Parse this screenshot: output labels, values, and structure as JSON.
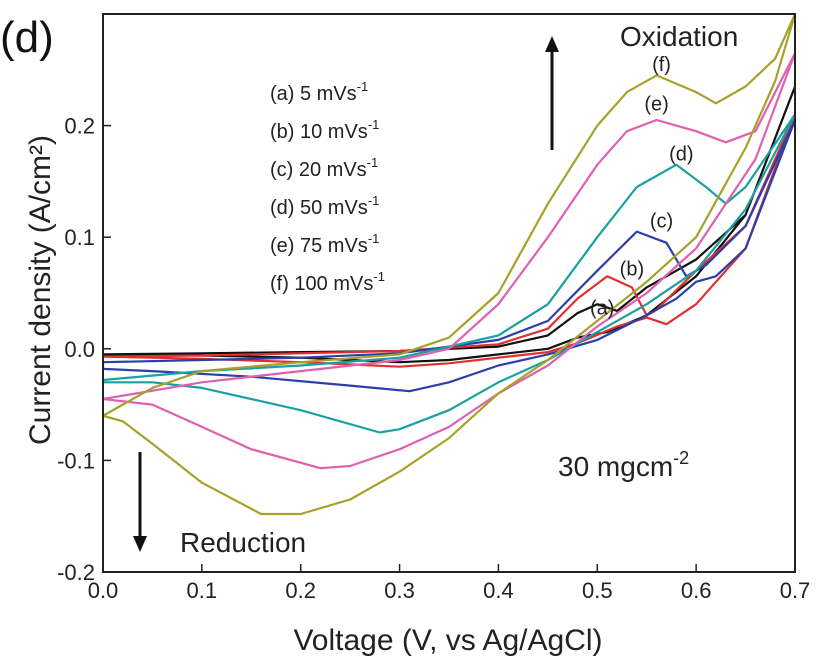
{
  "chart_data": {
    "type": "line",
    "panel_label": "(d)",
    "xlabel": "Voltage (V, vs Ag/AgCl)",
    "ylabel": "Current density (A/cm²)",
    "xlim": [
      0.0,
      0.7
    ],
    "ylim": [
      -0.2,
      0.3
    ],
    "x_ticks": [
      0.0,
      0.1,
      0.2,
      0.3,
      0.4,
      0.5,
      0.6,
      0.7
    ],
    "x_tick_labels": [
      "0.0",
      "0.1",
      "0.2",
      "0.3",
      "0.4",
      "0.5",
      "0.6",
      "0.7"
    ],
    "y_ticks": [
      -0.2,
      -0.1,
      0.0,
      0.1,
      0.2
    ],
    "y_tick_labels": [
      "-0.2",
      "-0.1",
      "0.0",
      "0.1",
      "0.2"
    ],
    "grid": false,
    "legend_position": "top-left",
    "legend": [
      {
        "text": "(a) 5 mVs",
        "sup": "-1"
      },
      {
        "text": "(b) 10 mVs",
        "sup": "-1"
      },
      {
        "text": "(c) 20 mVs",
        "sup": "-1"
      },
      {
        "text": "(d) 50 mVs",
        "sup": "-1"
      },
      {
        "text": "(e) 75 mVs",
        "sup": "-1"
      },
      {
        "text": "(f) 100 mVs",
        "sup": "-1"
      }
    ],
    "annotations": {
      "oxidation": "Oxidation",
      "reduction": "Reduction",
      "loading": "30 mgcm",
      "loading_sup": "-2"
    },
    "series": [
      {
        "name": "(a)",
        "color": "#111111",
        "label_at": [
          0.505,
          0.037
        ],
        "points": [
          [
            0.0,
            -0.005
          ],
          [
            0.1,
            -0.004
          ],
          [
            0.2,
            -0.003
          ],
          [
            0.3,
            -0.002
          ],
          [
            0.4,
            0.002
          ],
          [
            0.45,
            0.012
          ],
          [
            0.48,
            0.032
          ],
          [
            0.5,
            0.04
          ],
          [
            0.52,
            0.034
          ],
          [
            0.55,
            0.055
          ],
          [
            0.6,
            0.08
          ],
          [
            0.65,
            0.12
          ],
          [
            0.7,
            0.235
          ],
          [
            0.65,
            0.12
          ],
          [
            0.6,
            0.065
          ],
          [
            0.55,
            0.03
          ],
          [
            0.51,
            0.015
          ],
          [
            0.48,
            0.01
          ],
          [
            0.45,
            0.0
          ],
          [
            0.4,
            -0.005
          ],
          [
            0.35,
            -0.01
          ],
          [
            0.3,
            -0.012
          ],
          [
            0.25,
            -0.01
          ],
          [
            0.2,
            -0.008
          ],
          [
            0.1,
            -0.006
          ],
          [
            0.0,
            -0.005
          ]
        ]
      },
      {
        "name": "(b)",
        "color": "#e03030",
        "label_at": [
          0.535,
          0.072
        ],
        "points": [
          [
            0.0,
            -0.007
          ],
          [
            0.1,
            -0.006
          ],
          [
            0.2,
            -0.004
          ],
          [
            0.3,
            -0.002
          ],
          [
            0.4,
            0.004
          ],
          [
            0.45,
            0.018
          ],
          [
            0.48,
            0.045
          ],
          [
            0.51,
            0.065
          ],
          [
            0.535,
            0.055
          ],
          [
            0.55,
            0.03
          ],
          [
            0.56,
            0.035
          ],
          [
            0.6,
            0.07
          ],
          [
            0.65,
            0.11
          ],
          [
            0.7,
            0.21
          ],
          [
            0.65,
            0.09
          ],
          [
            0.6,
            0.04
          ],
          [
            0.57,
            0.022
          ],
          [
            0.55,
            0.028
          ],
          [
            0.52,
            0.02
          ],
          [
            0.48,
            0.005
          ],
          [
            0.45,
            -0.003
          ],
          [
            0.4,
            -0.008
          ],
          [
            0.35,
            -0.013
          ],
          [
            0.3,
            -0.016
          ],
          [
            0.25,
            -0.014
          ],
          [
            0.2,
            -0.012
          ],
          [
            0.1,
            -0.009
          ],
          [
            0.0,
            -0.007
          ]
        ]
      },
      {
        "name": "(c)",
        "color": "#2b3fa8",
        "label_at": [
          0.565,
          0.115
        ],
        "points": [
          [
            0.0,
            -0.012
          ],
          [
            0.1,
            -0.01
          ],
          [
            0.2,
            -0.008
          ],
          [
            0.3,
            -0.004
          ],
          [
            0.4,
            0.008
          ],
          [
            0.45,
            0.025
          ],
          [
            0.5,
            0.07
          ],
          [
            0.54,
            0.105
          ],
          [
            0.57,
            0.095
          ],
          [
            0.59,
            0.065
          ],
          [
            0.61,
            0.075
          ],
          [
            0.65,
            0.11
          ],
          [
            0.7,
            0.205
          ],
          [
            0.65,
            0.09
          ],
          [
            0.62,
            0.065
          ],
          [
            0.6,
            0.06
          ],
          [
            0.58,
            0.045
          ],
          [
            0.55,
            0.03
          ],
          [
            0.5,
            0.008
          ],
          [
            0.45,
            -0.005
          ],
          [
            0.4,
            -0.015
          ],
          [
            0.35,
            -0.03
          ],
          [
            0.31,
            -0.038
          ],
          [
            0.25,
            -0.033
          ],
          [
            0.15,
            -0.025
          ],
          [
            0.05,
            -0.02
          ],
          [
            0.0,
            -0.018
          ]
        ]
      },
      {
        "name": "(d)",
        "color": "#1aa0a0",
        "label_at": [
          0.585,
          0.175
        ],
        "points": [
          [
            0.0,
            -0.028
          ],
          [
            0.1,
            -0.02
          ],
          [
            0.2,
            -0.015
          ],
          [
            0.3,
            -0.008
          ],
          [
            0.4,
            0.012
          ],
          [
            0.45,
            0.04
          ],
          [
            0.5,
            0.1
          ],
          [
            0.54,
            0.145
          ],
          [
            0.58,
            0.165
          ],
          [
            0.61,
            0.145
          ],
          [
            0.63,
            0.13
          ],
          [
            0.65,
            0.145
          ],
          [
            0.7,
            0.21
          ],
          [
            0.65,
            0.125
          ],
          [
            0.6,
            0.07
          ],
          [
            0.55,
            0.04
          ],
          [
            0.5,
            0.015
          ],
          [
            0.45,
            -0.01
          ],
          [
            0.4,
            -0.03
          ],
          [
            0.35,
            -0.055
          ],
          [
            0.3,
            -0.072
          ],
          [
            0.28,
            -0.075
          ],
          [
            0.2,
            -0.055
          ],
          [
            0.1,
            -0.035
          ],
          [
            0.05,
            -0.03
          ],
          [
            0.0,
            -0.03
          ]
        ]
      },
      {
        "name": "(e)",
        "color": "#e060b0",
        "label_at": [
          0.56,
          0.22
        ],
        "points": [
          [
            0.0,
            -0.045
          ],
          [
            0.1,
            -0.03
          ],
          [
            0.2,
            -0.02
          ],
          [
            0.3,
            -0.01
          ],
          [
            0.35,
            0.0
          ],
          [
            0.4,
            0.04
          ],
          [
            0.45,
            0.1
          ],
          [
            0.5,
            0.165
          ],
          [
            0.53,
            0.195
          ],
          [
            0.56,
            0.205
          ],
          [
            0.6,
            0.195
          ],
          [
            0.63,
            0.185
          ],
          [
            0.66,
            0.195
          ],
          [
            0.7,
            0.265
          ],
          [
            0.66,
            0.17
          ],
          [
            0.6,
            0.09
          ],
          [
            0.55,
            0.05
          ],
          [
            0.5,
            0.02
          ],
          [
            0.45,
            -0.015
          ],
          [
            0.4,
            -0.04
          ],
          [
            0.35,
            -0.07
          ],
          [
            0.3,
            -0.09
          ],
          [
            0.25,
            -0.105
          ],
          [
            0.22,
            -0.107
          ],
          [
            0.15,
            -0.09
          ],
          [
            0.1,
            -0.07
          ],
          [
            0.05,
            -0.05
          ],
          [
            0.0,
            -0.045
          ]
        ]
      },
      {
        "name": "(f)",
        "color": "#a8a02a",
        "label_at": [
          0.565,
          0.255
        ],
        "points": [
          [
            0.0,
            -0.06
          ],
          [
            0.05,
            -0.035
          ],
          [
            0.1,
            -0.02
          ],
          [
            0.2,
            -0.012
          ],
          [
            0.3,
            -0.005
          ],
          [
            0.35,
            0.01
          ],
          [
            0.4,
            0.05
          ],
          [
            0.45,
            0.13
          ],
          [
            0.5,
            0.2
          ],
          [
            0.53,
            0.23
          ],
          [
            0.56,
            0.245
          ],
          [
            0.6,
            0.23
          ],
          [
            0.62,
            0.22
          ],
          [
            0.65,
            0.235
          ],
          [
            0.68,
            0.26
          ],
          [
            0.7,
            0.3
          ],
          [
            0.68,
            0.24
          ],
          [
            0.65,
            0.18
          ],
          [
            0.6,
            0.1
          ],
          [
            0.55,
            0.06
          ],
          [
            0.5,
            0.025
          ],
          [
            0.45,
            -0.01
          ],
          [
            0.4,
            -0.04
          ],
          [
            0.35,
            -0.08
          ],
          [
            0.3,
            -0.11
          ],
          [
            0.25,
            -0.135
          ],
          [
            0.2,
            -0.148
          ],
          [
            0.16,
            -0.148
          ],
          [
            0.1,
            -0.12
          ],
          [
            0.05,
            -0.085
          ],
          [
            0.02,
            -0.065
          ],
          [
            0.0,
            -0.06
          ]
        ]
      }
    ]
  }
}
